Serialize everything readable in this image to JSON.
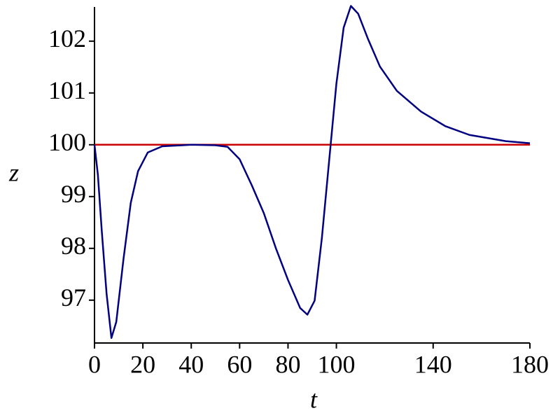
{
  "chart_data": {
    "type": "line",
    "x_label": "t",
    "y_label": "z",
    "x": [
      0,
      1.4,
      3,
      5,
      7,
      9,
      12,
      15,
      18,
      22,
      28,
      40,
      50,
      55,
      60,
      65,
      70,
      75,
      80,
      85,
      88,
      91,
      94,
      97,
      100,
      103,
      106,
      109,
      113,
      118,
      125,
      135,
      145,
      155,
      170,
      180
    ],
    "series": [
      {
        "color": "#cc0000",
        "values": [
          100,
          100,
          100,
          100,
          100,
          100,
          100,
          100,
          100,
          100,
          100,
          100,
          100,
          100,
          100,
          100,
          100,
          100,
          100,
          100,
          100,
          100,
          100,
          100,
          100,
          100,
          100,
          100,
          100,
          100,
          100,
          100,
          100,
          100,
          100,
          100
        ]
      },
      {
        "color": "#000080",
        "values": [
          100,
          99.42,
          98.34,
          97.12,
          96.27,
          96.58,
          97.8,
          98.88,
          99.49,
          99.85,
          99.97,
          100,
          99.99,
          99.96,
          99.72,
          99.22,
          98.68,
          98.0,
          97.39,
          96.85,
          96.72,
          96.99,
          98.2,
          99.69,
          101.18,
          102.26,
          102.68,
          102.53,
          102.05,
          101.51,
          101.04,
          100.64,
          100.36,
          100.19,
          100.07,
          100.03
        ]
      }
    ],
    "xlim": [
      0,
      180
    ],
    "xticks": [
      0,
      20,
      40,
      60,
      80,
      100,
      140,
      180
    ],
    "ylim": [
      96.2,
      102.7
    ],
    "yticks": [
      97,
      98,
      99,
      100,
      101,
      102
    ]
  }
}
